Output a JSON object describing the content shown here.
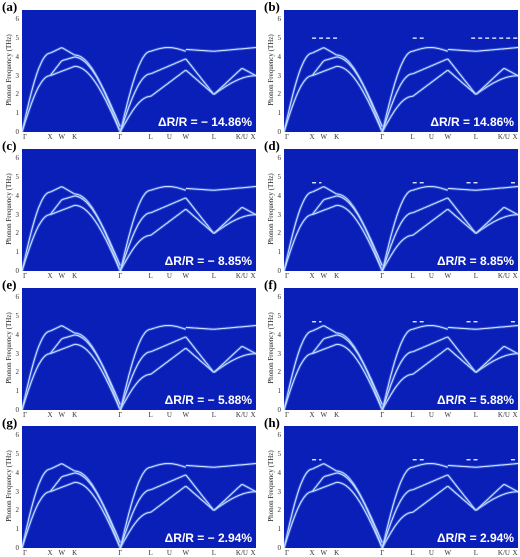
{
  "figure": {
    "y_axis_title": "Phonon Frequency (THz)",
    "y_ticks": [
      "0",
      "1",
      "2",
      "3",
      "4",
      "5",
      "6"
    ],
    "x_ticks": [
      "Γ",
      "X",
      "W",
      "K",
      "Γ",
      "L",
      "U",
      "W",
      "L",
      "K/U",
      "X"
    ],
    "panels": [
      {
        "letter": "(a)",
        "ratio_label": "ΔR/R = − 14.86%"
      },
      {
        "letter": "(b)",
        "ratio_label": "ΔR/R = 14.86%"
      },
      {
        "letter": "(c)",
        "ratio_label": "ΔR/R = − 8.85%"
      },
      {
        "letter": "(d)",
        "ratio_label": "ΔR/R = 8.85%"
      },
      {
        "letter": "(e)",
        "ratio_label": "ΔR/R = − 5.88%"
      },
      {
        "letter": "(f)",
        "ratio_label": "ΔR/R = 5.88%"
      },
      {
        "letter": "(g)",
        "ratio_label": "ΔR/R = − 2.94%"
      },
      {
        "letter": "(h)",
        "ratio_label": "ΔR/R = 2.94%"
      }
    ]
  },
  "chart_data": {
    "type": "line",
    "ylabel": "Phonon Frequency (THz)",
    "ylim": [
      0,
      6.5
    ],
    "x": [
      "Γ",
      "X",
      "W",
      "K",
      "Γ",
      "L",
      "U",
      "W",
      "L",
      "K/U",
      "X"
    ],
    "series": [
      {
        "values": [
          0,
          4.2,
          4.5,
          4.1,
          0,
          4.3,
          4.5,
          4.4,
          4.3,
          4.5,
          4.5
        ]
      },
      {
        "values": [
          0,
          3.0,
          3.8,
          4.0,
          0,
          3.1,
          3.6,
          3.9,
          2.0,
          3.3,
          3.0
        ]
      },
      {
        "values": [
          0,
          3.0,
          3.2,
          3.5,
          0,
          1.9,
          2.6,
          3.3,
          2.0,
          2.8,
          3.0
        ]
      }
    ]
  },
  "colors": {
    "plot_background": "#0a1fb8",
    "band": "#cfe0ff",
    "glow": "#6fa0ff",
    "dash": "#ffffff"
  }
}
